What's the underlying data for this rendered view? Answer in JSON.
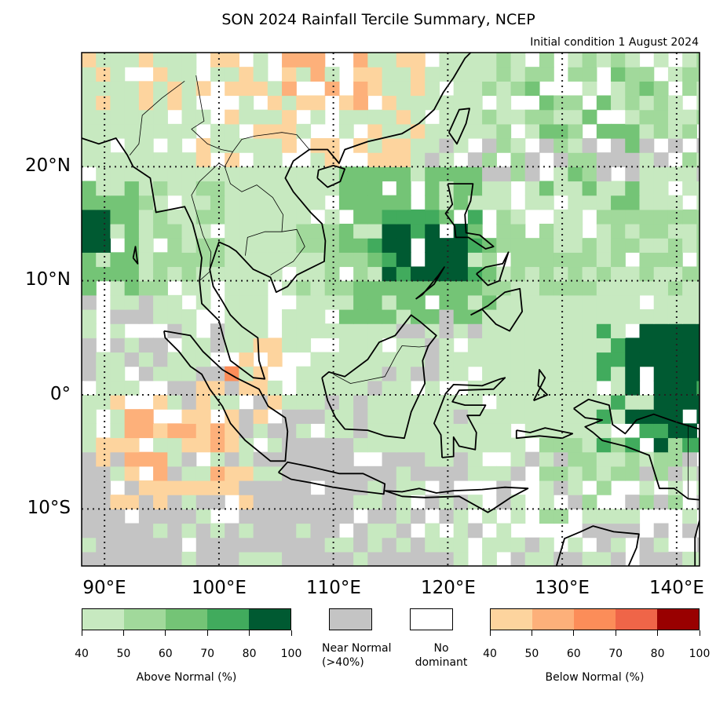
{
  "title": "SON 2024 Rainfall Tercile Summary, NCEP",
  "subtitle": "Initial condition 1 August 2024",
  "map": {
    "lon_range": [
      88,
      142
    ],
    "lat_range": [
      -15,
      30
    ],
    "lat_labels": [
      "20°N",
      "10°N",
      "0°",
      "10°S"
    ],
    "lon_labels": [
      "90°E",
      "100°E",
      "110°E",
      "120°E",
      "130°E",
      "140°E"
    ],
    "gridlines": true
  },
  "legend": {
    "above_normal": {
      "caption": "Above Normal (%)",
      "ticks": [
        "40",
        "50",
        "60",
        "70",
        "80",
        "100"
      ],
      "colors": [
        "#c7e9c0",
        "#a1d99b",
        "#74c476",
        "#41ab5d",
        "#005a32"
      ]
    },
    "near_normal": {
      "caption": "Near Normal\n(>40%)",
      "color": "#c4c4c4"
    },
    "no_dominant": {
      "caption": "No\ndominant",
      "color": "#ffffff"
    },
    "below_normal": {
      "caption": "Below Normal (%)",
      "ticks": [
        "40",
        "50",
        "60",
        "70",
        "80",
        "100"
      ],
      "colors": [
        "#fdd49e",
        "#fdb07a",
        "#fc8d59",
        "#ef6548",
        "#990000"
      ]
    }
  }
}
